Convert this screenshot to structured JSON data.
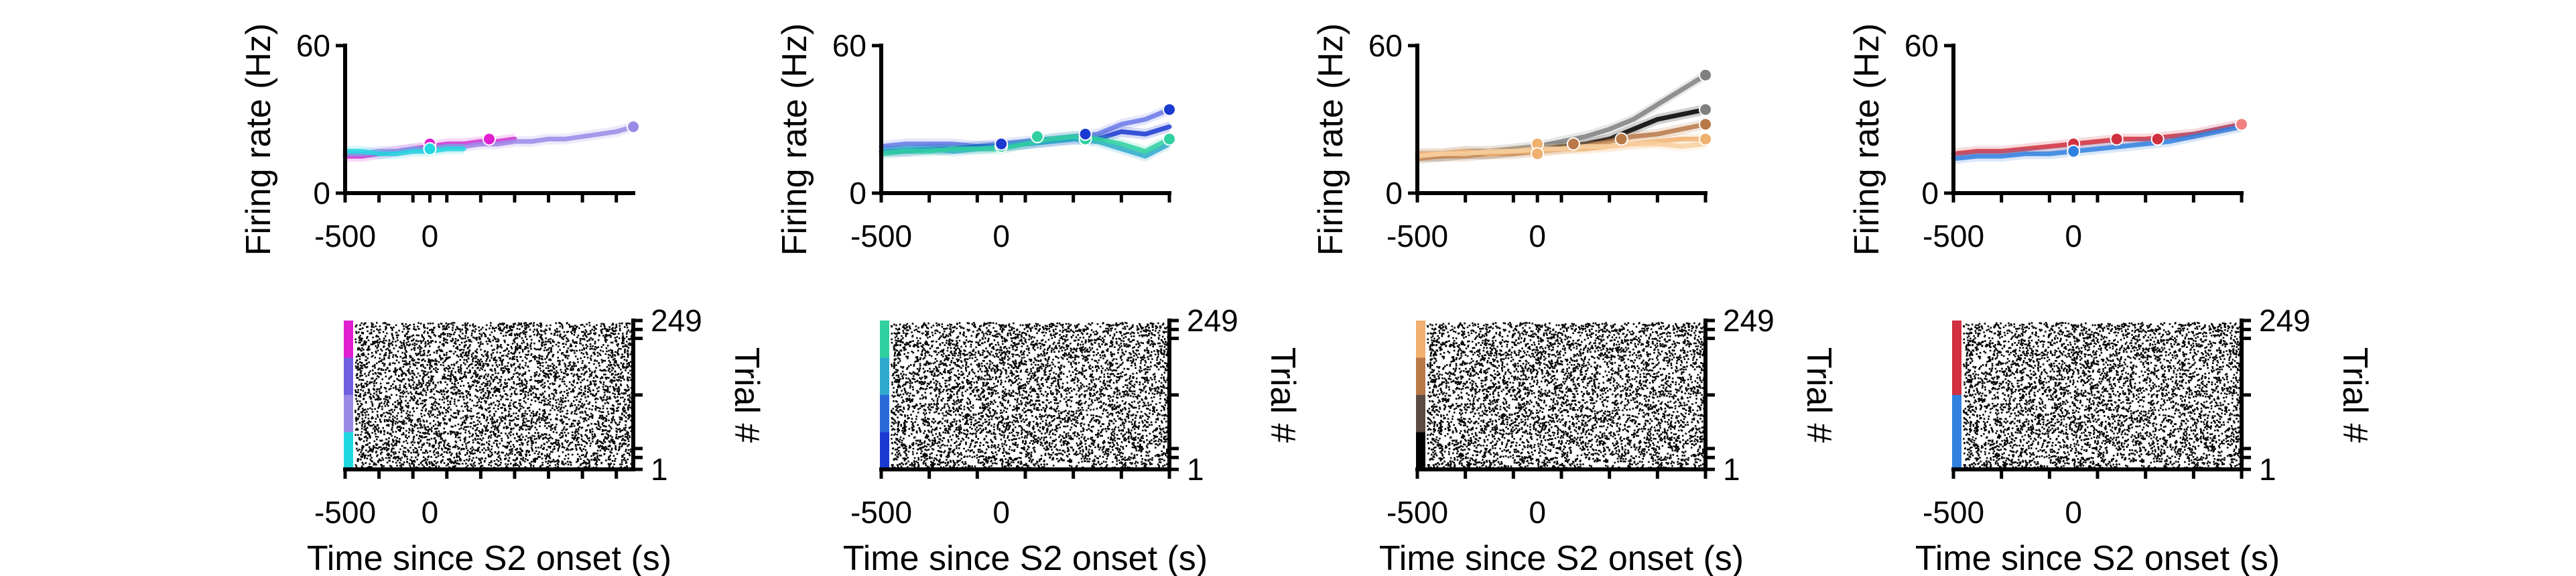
{
  "figure": {
    "rate_axis_label": "Firing rate (Hz)",
    "time_axis_label": "Time since S2 onset (s)",
    "trial_axis_label": "Trial #"
  },
  "chart_data": [
    {
      "type": "line",
      "panel": "rate-1",
      "xlabel": "",
      "ylabel": "Firing rate (Hz)",
      "xlim": [
        -500,
        1200
      ],
      "ylim": [
        0,
        60
      ],
      "x_ticks": [
        -500,
        0
      ],
      "y_ticks": [
        0,
        60
      ],
      "x": [
        -500,
        -400,
        -300,
        -200,
        -100,
        0,
        100,
        200,
        300,
        400,
        500,
        600,
        700,
        800,
        900,
        1000,
        1100,
        1200
      ],
      "series": [
        {
          "color": "#e020d0",
          "values": [
            15,
            15,
            16,
            17,
            18,
            19,
            20,
            20,
            21,
            21,
            22,
            null,
            null,
            null,
            null,
            null,
            null,
            null
          ]
        },
        {
          "color": "#9a8ae6",
          "values": [
            16,
            16,
            17,
            17,
            18,
            18,
            19,
            19,
            20,
            20,
            21,
            21,
            22,
            22,
            23,
            24,
            25,
            27
          ]
        },
        {
          "color": "#20d8e0",
          "values": [
            17,
            17,
            16,
            16,
            17,
            17,
            18,
            18,
            null,
            null,
            null,
            null,
            null,
            null,
            null,
            null,
            null,
            null
          ]
        }
      ],
      "markers": [
        {
          "x": 0,
          "y": 20,
          "color": "#e020d0"
        },
        {
          "x": 0,
          "y": 18,
          "color": "#20d8e0"
        },
        {
          "x": 350,
          "y": 22,
          "color": "#e020d0"
        },
        {
          "x": 1200,
          "y": 27,
          "color": "#9a8ae6"
        }
      ]
    },
    {
      "type": "line",
      "panel": "rate-2",
      "xlabel": "",
      "ylabel": "Firing rate (Hz)",
      "xlim": [
        -500,
        700
      ],
      "ylim": [
        0,
        60
      ],
      "x_ticks": [
        -500,
        0
      ],
      "y_ticks": [
        0,
        60
      ],
      "x": [
        -500,
        -400,
        -300,
        -200,
        -100,
        0,
        100,
        200,
        300,
        400,
        500,
        600,
        700
      ],
      "series": [
        {
          "color": "#6a78e8",
          "values": [
            19,
            20,
            20,
            20,
            19,
            20,
            21,
            22,
            23,
            24,
            28,
            30,
            34
          ]
        },
        {
          "color": "#1a3ad0",
          "values": [
            17,
            17,
            18,
            18,
            19,
            19,
            20,
            21,
            22,
            22,
            25,
            24,
            27
          ]
        },
        {
          "color": "#30a8d0",
          "values": [
            17,
            18,
            18,
            17,
            18,
            19,
            20,
            21,
            22,
            21,
            18,
            15,
            20
          ]
        },
        {
          "color": "#30d0a0",
          "values": [
            16,
            17,
            17,
            18,
            18,
            18,
            20,
            22,
            23,
            22,
            20,
            17,
            22
          ]
        }
      ],
      "markers": [
        {
          "x": 0,
          "y": 19,
          "color": "#30d0a0"
        },
        {
          "x": 0,
          "y": 20,
          "color": "#1a3ad0"
        },
        {
          "x": 150,
          "y": 23,
          "color": "#30d0a0"
        },
        {
          "x": 350,
          "y": 22,
          "color": "#30d0a0"
        },
        {
          "x": 350,
          "y": 24,
          "color": "#1a3ad0"
        },
        {
          "x": 700,
          "y": 34,
          "color": "#1a3ad0"
        },
        {
          "x": 700,
          "y": 22,
          "color": "#30d0a0"
        }
      ]
    },
    {
      "type": "line",
      "panel": "rate-3",
      "xlabel": "",
      "ylabel": "Firing rate (Hz)",
      "xlim": [
        -500,
        700
      ],
      "ylim": [
        0,
        60
      ],
      "x_ticks": [
        -500,
        0
      ],
      "y_ticks": [
        0,
        60
      ],
      "x": [
        -500,
        -400,
        -300,
        -200,
        -100,
        0,
        100,
        200,
        300,
        400,
        500,
        600,
        700
      ],
      "series": [
        {
          "color": "#000000",
          "values": [
            15,
            15,
            16,
            16,
            17,
            18,
            19,
            20,
            22,
            26,
            30,
            32,
            34
          ]
        },
        {
          "color": "#808080",
          "values": [
            16,
            16,
            17,
            17,
            18,
            19,
            21,
            23,
            26,
            30,
            36,
            42,
            48
          ]
        },
        {
          "color": "#b87848",
          "values": [
            14,
            15,
            15,
            16,
            16,
            17,
            18,
            19,
            21,
            23,
            24,
            26,
            28
          ]
        },
        {
          "color": "#f0b070",
          "values": [
            16,
            16,
            17,
            16,
            17,
            17,
            18,
            18,
            19,
            20,
            21,
            22,
            22
          ]
        },
        {
          "color": "#f8d0a0",
          "values": [
            15,
            16,
            16,
            17,
            17,
            18,
            18,
            19,
            19,
            20,
            20,
            19,
            20
          ]
        }
      ],
      "markers": [
        {
          "x": 0,
          "y": 20,
          "color": "#f0b070"
        },
        {
          "x": 0,
          "y": 16,
          "color": "#f0b070"
        },
        {
          "x": 150,
          "y": 20,
          "color": "#b87848"
        },
        {
          "x": 350,
          "y": 22,
          "color": "#b87848"
        },
        {
          "x": 700,
          "y": 34,
          "color": "#808080"
        },
        {
          "x": 700,
          "y": 48,
          "color": "#808080"
        },
        {
          "x": 700,
          "y": 28,
          "color": "#b87848"
        },
        {
          "x": 700,
          "y": 22,
          "color": "#f0b070"
        }
      ]
    },
    {
      "type": "line",
      "panel": "rate-4",
      "xlabel": "",
      "ylabel": "Firing rate (Hz)",
      "xlim": [
        -500,
        700
      ],
      "ylim": [
        0,
        60
      ],
      "x_ticks": [
        -500,
        0
      ],
      "y_ticks": [
        0,
        60
      ],
      "x": [
        -500,
        -400,
        -300,
        -200,
        -100,
        0,
        100,
        200,
        300,
        400,
        500,
        600,
        700
      ],
      "series": [
        {
          "color": "#d03040",
          "values": [
            16,
            17,
            17,
            18,
            19,
            20,
            21,
            22,
            22,
            23,
            24,
            26,
            28
          ]
        },
        {
          "color": "#3080e0",
          "values": [
            14,
            15,
            15,
            16,
            16,
            17,
            18,
            19,
            20,
            21,
            23,
            25,
            27
          ]
        }
      ],
      "markers": [
        {
          "x": 0,
          "y": 20,
          "color": "#d03040"
        },
        {
          "x": 0,
          "y": 17,
          "color": "#3080e0"
        },
        {
          "x": 180,
          "y": 22,
          "color": "#d03040"
        },
        {
          "x": 350,
          "y": 22,
          "color": "#d03040"
        },
        {
          "x": 700,
          "y": 28,
          "color": "#f08080"
        }
      ]
    }
  ],
  "rasters": [
    {
      "panel": "raster-1",
      "xlim": [
        -500,
        1200
      ],
      "trials": [
        1,
        249
      ],
      "y_tick_labels": [
        "249",
        "1"
      ],
      "x_tick_labels": [
        "-500",
        "0"
      ],
      "condition_colors": [
        "#20d8e0",
        "#9a8ae6",
        "#7060e0",
        "#e020d0"
      ]
    },
    {
      "panel": "raster-2",
      "xlim": [
        -500,
        700
      ],
      "trials": [
        1,
        249
      ],
      "y_tick_labels": [
        "249",
        "1"
      ],
      "x_tick_labels": [
        "-500",
        "0"
      ],
      "condition_colors": [
        "#1a3ad0",
        "#2a6ad8",
        "#30a8d0",
        "#30d0a0"
      ]
    },
    {
      "panel": "raster-3",
      "xlim": [
        -500,
        700
      ],
      "trials": [
        1,
        249
      ],
      "y_tick_labels": [
        "249",
        "1"
      ],
      "x_tick_labels": [
        "-500",
        "0"
      ],
      "condition_colors": [
        "#000000",
        "#5a4a40",
        "#b87848",
        "#f0b070"
      ]
    },
    {
      "panel": "raster-4",
      "xlim": [
        -500,
        700
      ],
      "trials": [
        1,
        249
      ],
      "y_tick_labels": [
        "249",
        "1"
      ],
      "x_tick_labels": [
        "-500",
        "0"
      ],
      "condition_colors": [
        "#3080e0",
        "#d03040"
      ]
    }
  ]
}
